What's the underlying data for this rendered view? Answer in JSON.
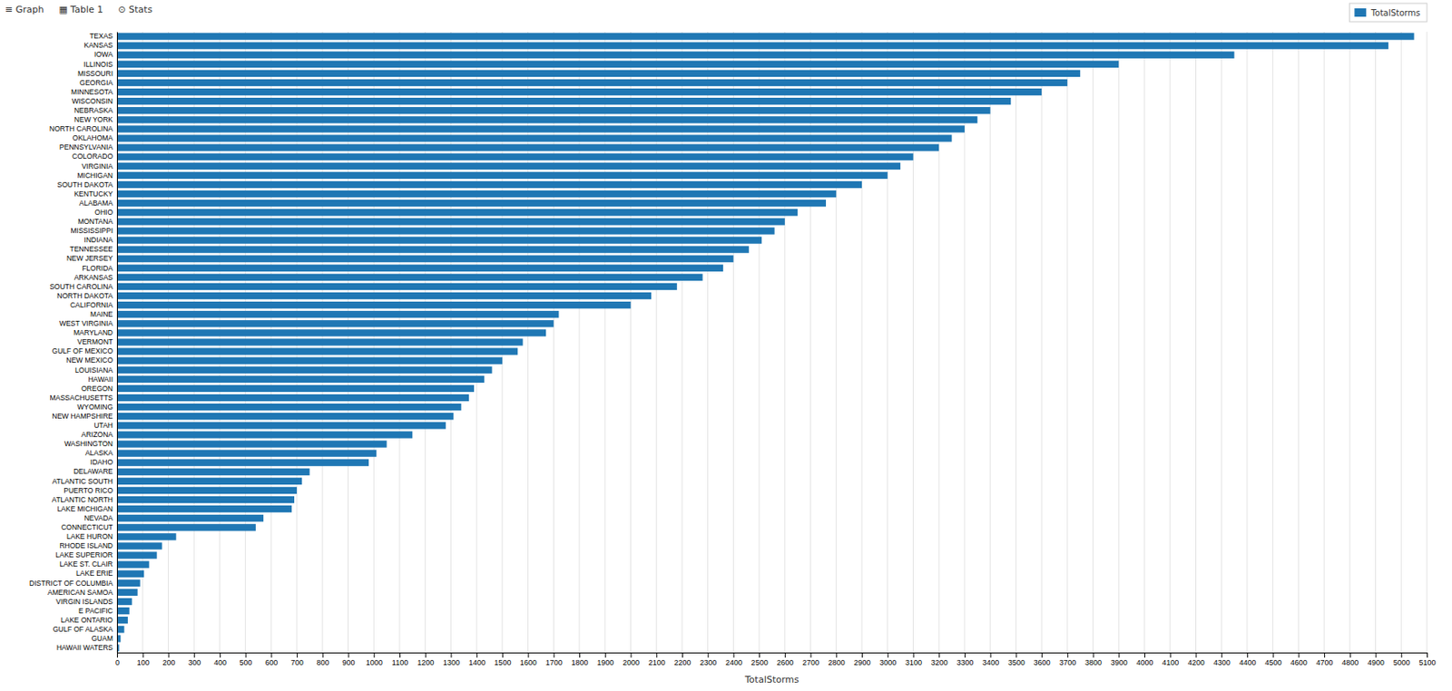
{
  "chart_data": {
    "type": "bar",
    "orientation": "horizontal",
    "categories": [
      "TEXAS",
      "KANSAS",
      "IOWA",
      "ILLINOIS",
      "MISSOURI",
      "GEORGIA",
      "MINNESOTA",
      "WISCONSIN",
      "NEBRASKA",
      "NEW YORK",
      "NORTH CAROLINA",
      "OKLAHOMA",
      "PENNSYLVANIA",
      "COLORADO",
      "VIRGINIA",
      "MICHIGAN",
      "SOUTH DAKOTA",
      "KENTUCKY",
      "ALABAMA",
      "OHIO",
      "MONTANA",
      "MISSISSIPPI",
      "INDIANA",
      "TENNESSEE",
      "NEW JERSEY",
      "FLORIDA",
      "ARKANSAS",
      "SOUTH CAROLINA",
      "NORTH DAKOTA",
      "CALIFORNIA",
      "MAINE",
      "WEST VIRGINIA",
      "MARYLAND",
      "VERMONT",
      "GULF OF MEXICO",
      "NEW MEXICO",
      "LOUISIANA",
      "HAWAII",
      "OREGON",
      "MASSACHUSETTS",
      "WYOMING",
      "NEW HAMPSHIRE",
      "UTAH",
      "ARIZONA",
      "WASHINGTON",
      "ALASKA",
      "IDAHO",
      "DELAWARE",
      "ATLANTIC SOUTH",
      "PUERTO RICO",
      "ATLANTIC NORTH",
      "LAKE MICHIGAN",
      "NEVADA",
      "CONNECTICUT",
      "LAKE HURON",
      "RHODE ISLAND",
      "LAKE SUPERIOR",
      "LAKE ST. CLAIR",
      "LAKE ERIE",
      "DISTRICT OF COLUMBIA",
      "AMERICAN SAMOA",
      "VIRGIN ISLANDS",
      "E PACIFIC",
      "LAKE ONTARIO",
      "GULF OF ALASKA",
      "GUAM",
      "HAWAII WATERS"
    ],
    "series": [
      {
        "name": "TotalStorms",
        "color": "#1F77B4",
        "values": [
          5050,
          4950,
          4350,
          3900,
          3750,
          3700,
          3600,
          3480,
          3400,
          3350,
          3300,
          3250,
          3200,
          3100,
          3050,
          3000,
          2900,
          2800,
          2760,
          2650,
          2600,
          2560,
          2510,
          2460,
          2400,
          2360,
          2280,
          2180,
          2080,
          2000,
          1720,
          1700,
          1670,
          1580,
          1560,
          1500,
          1460,
          1430,
          1390,
          1370,
          1340,
          1310,
          1280,
          1150,
          1050,
          1010,
          980,
          750,
          720,
          700,
          690,
          680,
          570,
          540,
          230,
          175,
          155,
          125,
          105,
          90,
          80,
          58,
          48,
          42,
          28,
          14,
          8
        ]
      }
    ],
    "x_label": "TotalStorms",
    "xlim": [
      0,
      5100
    ],
    "xticks": [
      0,
      100,
      200,
      300,
      400,
      500,
      600,
      700,
      800,
      900,
      1000,
      1100,
      1200,
      1300,
      1400,
      1500,
      1600,
      1700,
      1800,
      1900,
      2000,
      2100,
      2200,
      2300,
      2400,
      2500,
      2600,
      2700,
      2800,
      2900,
      3000,
      3100,
      3200,
      3300,
      3400,
      3500,
      3600,
      3700,
      3800,
      3900,
      4000,
      4100,
      4200,
      4300,
      4400,
      4500,
      4600,
      4700,
      4800,
      4900,
      5000,
      5100
    ],
    "grid": true,
    "legend": "upper right",
    "annotations": [
      "≡ Graph",
      "▦ Table 1",
      "⊙ Stats"
    ]
  }
}
